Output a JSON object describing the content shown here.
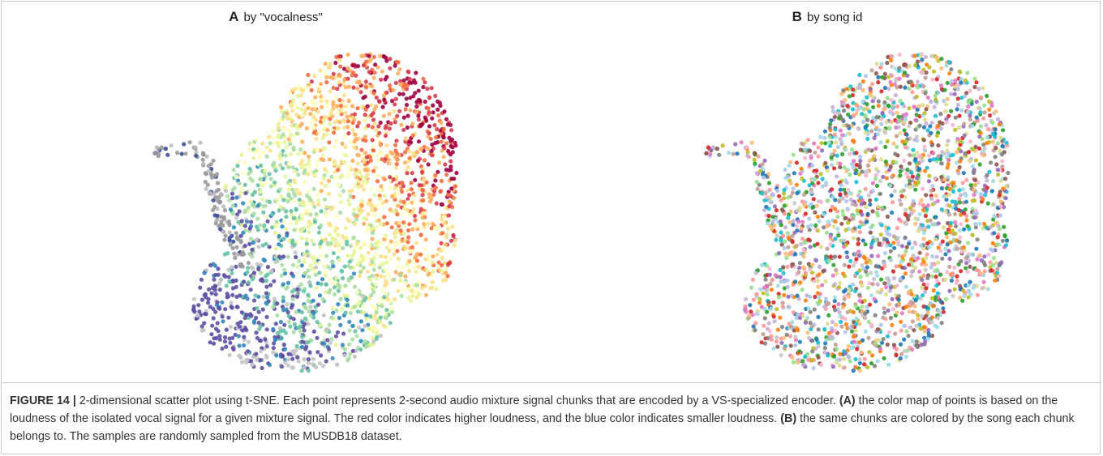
{
  "panels": [
    {
      "letter": "A",
      "title": "by \"vocalness\""
    },
    {
      "letter": "B",
      "title": "by song id"
    }
  ],
  "caption": {
    "label": "FIGURE 14 |",
    "parts": [
      {
        "text": " 2-dimensional scatter plot using t-SNE. Each point represents 2-second audio mixture signal chunks that are encoded by a VS-specialized encoder. ",
        "bold": false
      },
      {
        "text": "(A)",
        "bold": true
      },
      {
        "text": " the color map of points is based on the loudness of the isolated vocal signal for a given mixture signal. The red color indicates higher loudness, and the blue color indicates smaller loudness. ",
        "bold": false
      },
      {
        "text": "(B)",
        "bold": true
      },
      {
        "text": " the same chunks are colored by the song each chunk belongs to. The samples are randomly sampled from the MUSDB18 dataset.",
        "bold": false
      }
    ]
  }
}
